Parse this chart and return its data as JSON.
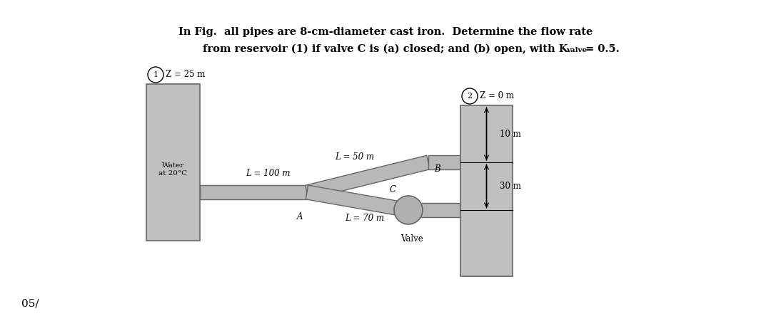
{
  "title_line1": "In Fig.  all pipes are 8-cm-diameter cast iron.  Determine the flow rate",
  "title_line2": "from reservoir (1) if valve C is (a) closed; and (b) open, with K",
  "title_sub": "valve",
  "title_end": " = 0.5.",
  "background_color": "#ffffff",
  "res_color": "#c0c0c0",
  "res_edge": "#666666",
  "pipe_fill": "#b8b8b8",
  "pipe_edge": "#666666",
  "valve_fill": "#b0b0b0",
  "label_node1": "1",
  "label_node2": "2",
  "label_z1": "Z = 25 m",
  "label_z2": "Z = 0 m",
  "label_water": "Water\nat 20°C",
  "label_L1": "L = 50 m",
  "label_L2": "L = 100 m",
  "label_L3": "L = 70 m",
  "label_A": "A",
  "label_B": "B",
  "label_C": "C",
  "label_valve": "Valve",
  "label_10m": "10 m",
  "label_30m": "30 m",
  "footer": "05/"
}
